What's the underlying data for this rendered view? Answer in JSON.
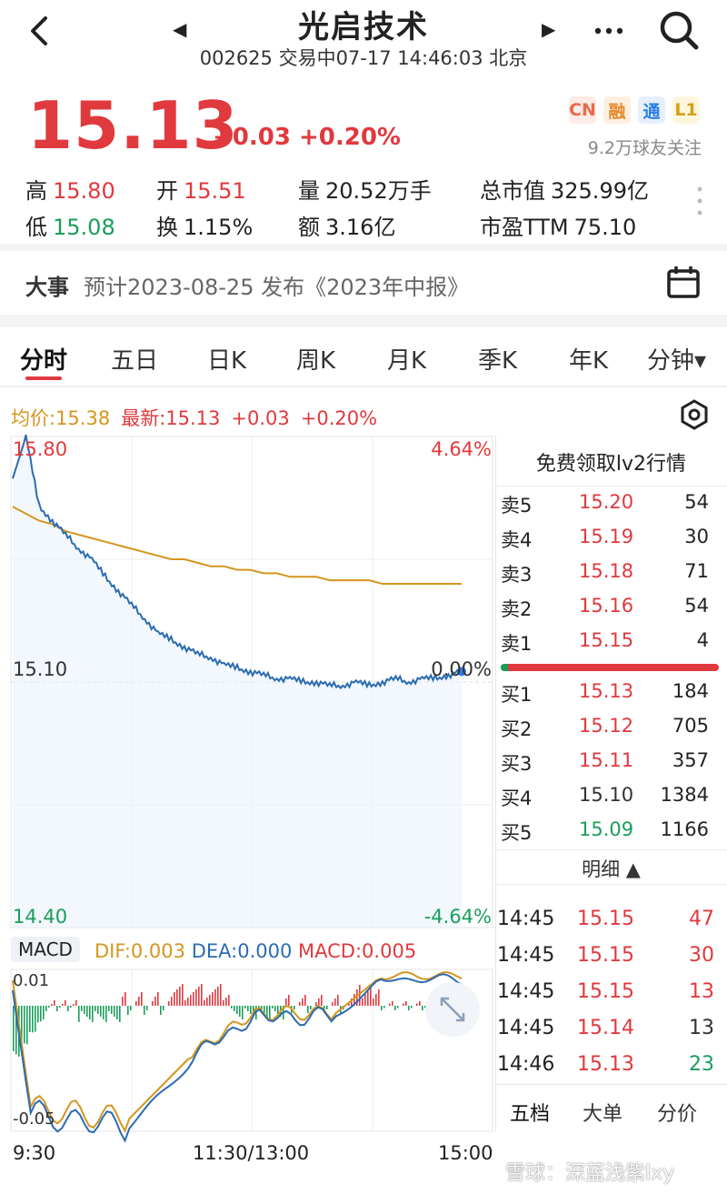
{
  "header": {
    "title": "光启技术",
    "subtitle": "002625 交易中07-17 14:46:03 北京"
  },
  "quote": {
    "price": "15.13",
    "change": "+0.03 +0.20%",
    "tags": [
      {
        "label": "CN",
        "color": "#e86a4a",
        "bg": "#fdebe6"
      },
      {
        "label": "融",
        "color": "#e58a2b",
        "bg": "#fdf0e0"
      },
      {
        "label": "通",
        "color": "#2b7de9",
        "bg": "#e6f0fd"
      },
      {
        "label": "L1",
        "color": "#d4a017",
        "bg": "#fdf6dc"
      }
    ],
    "followers": "9.2万球友关注",
    "stats": {
      "high_label": "高",
      "high": "15.80",
      "open_label": "开",
      "open": "15.51",
      "volume_label": "量",
      "volume": "20.52万手",
      "mktcap_label": "总市值",
      "mktcap": "325.99亿",
      "low_label": "低",
      "low": "15.08",
      "turnover_label": "换",
      "turnover": "1.15%",
      "amount_label": "额",
      "amount": "3.16亿",
      "pe_label": "市盈TTM",
      "pe": "75.10"
    }
  },
  "event": {
    "label": "大事",
    "text": "预计2023-08-25 发布《2023年中报》"
  },
  "tabs": [
    "分时",
    "五日",
    "日K",
    "周K",
    "月K",
    "季K",
    "年K",
    "分钟▾"
  ],
  "info": {
    "avg": "均价:15.38",
    "latest": "最新:15.13",
    "chg": "+0.03",
    "pct": "+0.20%"
  },
  "chart": {
    "y_top": "15.80",
    "y_mid": "15.10",
    "y_bot": "14.40",
    "pct_top": "4.64%",
    "pct_mid": "0.00%",
    "pct_bot": "-4.64%",
    "macd_label": "MACD",
    "dif": "DIF:0.003",
    "dea": "DEA:0.000",
    "macd": "MACD:0.005",
    "macd_top": "0.01",
    "macd_bot": "-0.05",
    "x_start": "9:30",
    "x_mid": "11:30/13:00",
    "x_end": "15:00"
  },
  "chart_data": {
    "type": "line",
    "x_range": [
      "9:30",
      "15:00"
    ],
    "ylim": [
      14.4,
      15.8
    ],
    "series": [
      {
        "values": [
          15.68,
          15.8,
          15.6,
          15.56,
          15.52,
          15.48,
          15.45,
          15.4,
          15.36,
          15.32,
          15.28,
          15.24,
          15.22,
          15.2,
          15.18,
          15.17,
          15.15,
          15.14,
          15.13,
          15.12,
          15.11,
          15.11,
          15.1,
          15.1,
          15.09,
          15.09,
          15.1,
          15.09,
          15.1,
          15.11,
          15.1,
          15.11,
          15.11,
          15.12,
          15.13
        ],
        "color": "#2b6cb0"
      },
      {
        "values": [
          15.6,
          15.58,
          15.56,
          15.55,
          15.53,
          15.52,
          15.51,
          15.5,
          15.49,
          15.48,
          15.47,
          15.46,
          15.45,
          15.45,
          15.44,
          15.43,
          15.43,
          15.42,
          15.42,
          15.41,
          15.41,
          15.4,
          15.4,
          15.4,
          15.39,
          15.39,
          15.39,
          15.39,
          15.38,
          15.38,
          15.38,
          15.38,
          15.38,
          15.38,
          15.38
        ],
        "color": "#d4961e"
      }
    ]
  },
  "book": {
    "header": "免费领取lv2行情",
    "asks": [
      {
        "label": "卖5",
        "price": "15.20",
        "qty": "54"
      },
      {
        "label": "卖4",
        "price": "15.19",
        "qty": "30"
      },
      {
        "label": "卖3",
        "price": "15.18",
        "qty": "71"
      },
      {
        "label": "卖2",
        "price": "15.16",
        "qty": "54"
      },
      {
        "label": "卖1",
        "price": "15.15",
        "qty": "4"
      }
    ],
    "bids": [
      {
        "label": "买1",
        "price": "15.13",
        "qty": "184"
      },
      {
        "label": "买2",
        "price": "15.12",
        "qty": "705"
      },
      {
        "label": "买3",
        "price": "15.11",
        "qty": "357"
      },
      {
        "label": "买4",
        "price": "15.10",
        "qty": "1384"
      },
      {
        "label": "买5",
        "price": "15.09",
        "qty": "1166"
      }
    ],
    "detail_toggle": "明细 ▲",
    "trades": [
      {
        "time": "14:45",
        "price": "15.15",
        "qty": "47"
      },
      {
        "time": "14:45",
        "price": "15.15",
        "qty": "30"
      },
      {
        "time": "14:45",
        "price": "15.15",
        "qty": "13"
      },
      {
        "time": "14:45",
        "price": "15.14",
        "qty": "13"
      },
      {
        "time": "14:46",
        "price": "15.13",
        "qty": "23"
      }
    ],
    "bottom_tabs": [
      "五档",
      "大单",
      "分价"
    ]
  },
  "watermark": "雪球：深蓝浅紫lxy"
}
